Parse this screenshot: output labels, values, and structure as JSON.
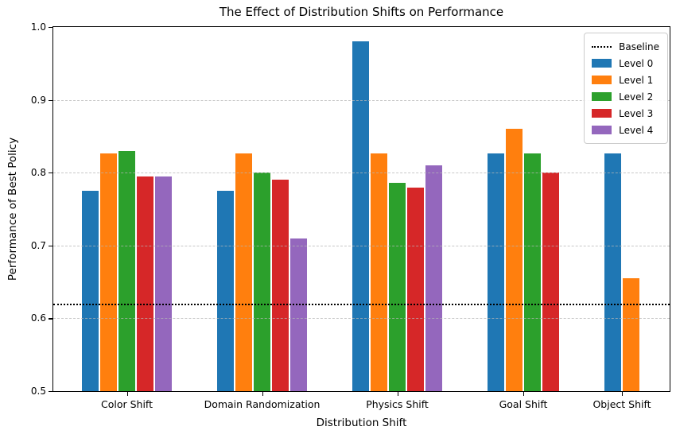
{
  "chart_data": {
    "type": "bar",
    "title": "The Effect of Distribution Shifts on Performance",
    "xlabel": "Distribution Shift",
    "ylabel": "Performance of Best Policy",
    "ylim": [
      0.5,
      1.0
    ],
    "yticks": [
      1.0,
      0.9,
      0.8,
      0.7,
      0.6,
      0.5
    ],
    "grid_values": [
      0.9,
      0.8,
      0.7,
      0.6
    ],
    "grid": "horizontal, light gray dashed, drawn over bars",
    "legend_position": "upper right",
    "categories": [
      "Color Shift",
      "Domain Randomization",
      "Physics Shift",
      "Goal Shift",
      "Object Shift"
    ],
    "series": [
      {
        "name": "Level 0",
        "color": "#1f77b4",
        "values": [
          0.775,
          0.775,
          0.98,
          0.826,
          0.826
        ]
      },
      {
        "name": "Level 1",
        "color": "#ff7f0e",
        "values": [
          0.826,
          0.826,
          0.826,
          0.86,
          0.655
        ]
      },
      {
        "name": "Level 2",
        "color": "#2ca02c",
        "values": [
          0.83,
          0.8,
          0.786,
          0.826,
          null
        ]
      },
      {
        "name": "Level 3",
        "color": "#d62728",
        "values": [
          0.795,
          0.79,
          0.78,
          0.8,
          null
        ]
      },
      {
        "name": "Level 4",
        "color": "#9467bd",
        "values": [
          0.795,
          0.71,
          0.81,
          null,
          null
        ]
      }
    ],
    "baseline": {
      "label": "Baseline",
      "value": 0.62,
      "color": "#000000",
      "style": "dotted"
    }
  }
}
